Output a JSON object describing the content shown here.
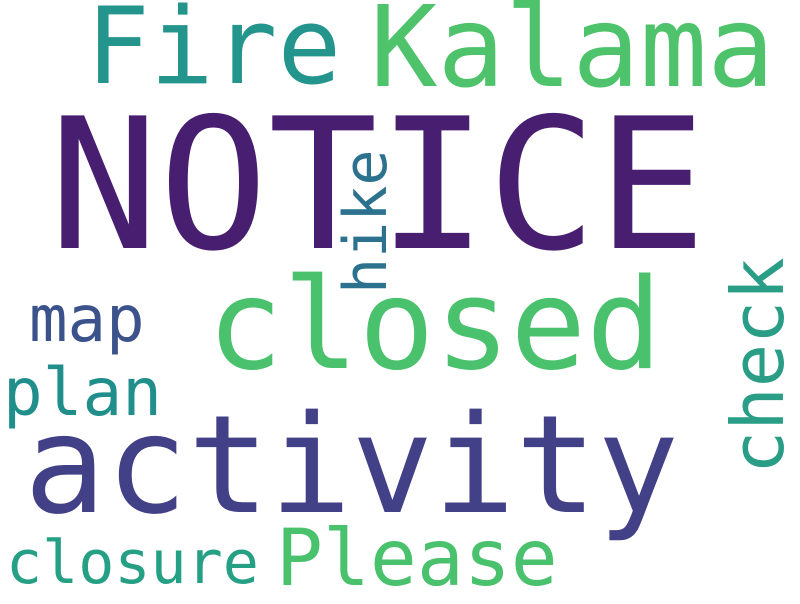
{
  "colors": {
    "background": "#ffffff",
    "notice": "#481f70",
    "activity": "#424086",
    "closed": "#4ac16d",
    "kalama": "#4ec36b",
    "fire": "#23958c",
    "please": "#4ac16d",
    "check": "#2a9d86",
    "closure": "#25a085",
    "plan": "#208f8c",
    "map": "#3b528b",
    "hike": "#2c728e"
  },
  "words": {
    "notice": "NOTICE",
    "activity": "activity",
    "closed": "closed",
    "kalama": "Kalama",
    "fire": "Fire",
    "please": "Please",
    "check": "check",
    "closure": "closure",
    "plan": "plan",
    "map": "map",
    "hike": "hike"
  }
}
